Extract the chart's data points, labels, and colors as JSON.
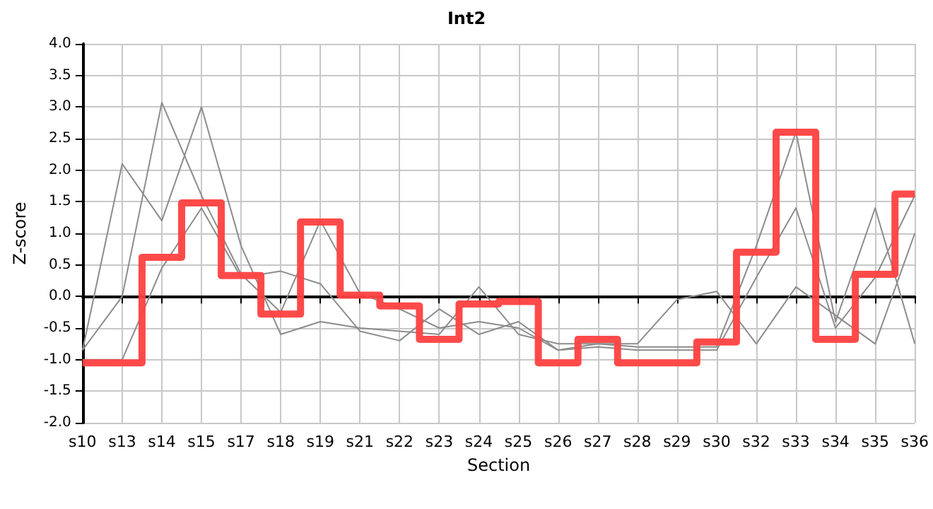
{
  "chart_data": {
    "type": "line",
    "title": "Int2",
    "xlabel": "Section",
    "ylabel": "Z-score",
    "categories": [
      "s10",
      "s13",
      "s14",
      "s15",
      "s17",
      "s18",
      "s19",
      "s21",
      "s22",
      "s23",
      "s24",
      "s25",
      "s26",
      "s27",
      "s28",
      "s29",
      "s30",
      "s32",
      "s33",
      "s34",
      "s35",
      "s36"
    ],
    "series": [
      {
        "color": "#8c8c8c",
        "values": [
          -0.85,
          2.1,
          1.2,
          3.0,
          0.8,
          -0.6,
          -0.4,
          -0.5,
          -0.55,
          -0.6,
          0.15,
          -0.6,
          -0.75,
          -0.75,
          -0.75,
          -0.05,
          0.08,
          -0.75,
          0.15,
          -0.3,
          -0.75,
          1.0
        ]
      },
      {
        "color": "#8c8c8c",
        "values": [
          -0.85,
          0.0,
          3.07,
          1.6,
          0.35,
          -0.25,
          1.2,
          0.05,
          -0.2,
          -0.5,
          -0.4,
          -0.5,
          -0.85,
          -0.75,
          -0.8,
          -0.8,
          -0.8,
          0.8,
          2.6,
          -0.4,
          1.4,
          -0.75
        ]
      },
      {
        "color": "#8c8c8c",
        "values": [
          -1.0,
          -1.0,
          0.45,
          1.4,
          0.3,
          0.4,
          0.2,
          -0.55,
          -0.7,
          -0.2,
          -0.6,
          -0.4,
          -0.85,
          -0.8,
          -0.85,
          -0.85,
          -0.85,
          0.3,
          1.4,
          -0.5,
          0.3,
          1.6
        ]
      },
      {
        "type": "step",
        "color": "#ff4040",
        "values": [
          -1.05,
          -1.05,
          0.62,
          1.48,
          0.33,
          -0.28,
          1.18,
          0.02,
          -0.15,
          -0.68,
          -0.12,
          -0.08,
          -1.05,
          -0.68,
          -1.05,
          -1.05,
          -0.72,
          0.7,
          2.6,
          -0.68,
          0.35,
          1.62
        ]
      }
    ],
    "ylim": [
      -2,
      4
    ],
    "yticks": [
      {
        "value": -2,
        "label": "-2.0"
      },
      {
        "value": -1.5,
        "label": "-1.5"
      },
      {
        "value": -1,
        "label": "-1.0"
      },
      {
        "value": -0.5,
        "label": "-0.5"
      },
      {
        "value": 0,
        "label": "0.0"
      },
      {
        "value": 0.5,
        "label": "0.5"
      },
      {
        "value": 1,
        "label": "1.0"
      },
      {
        "value": 1.5,
        "label": "1.5"
      },
      {
        "value": 2,
        "label": "2.0"
      },
      {
        "value": 2.5,
        "label": "2.5"
      },
      {
        "value": 3,
        "label": "3.0"
      },
      {
        "value": 3.5,
        "label": "3.5"
      },
      {
        "value": 4,
        "label": "4.0"
      }
    ],
    "grid": true,
    "marker": "none",
    "line_style": "solid"
  }
}
